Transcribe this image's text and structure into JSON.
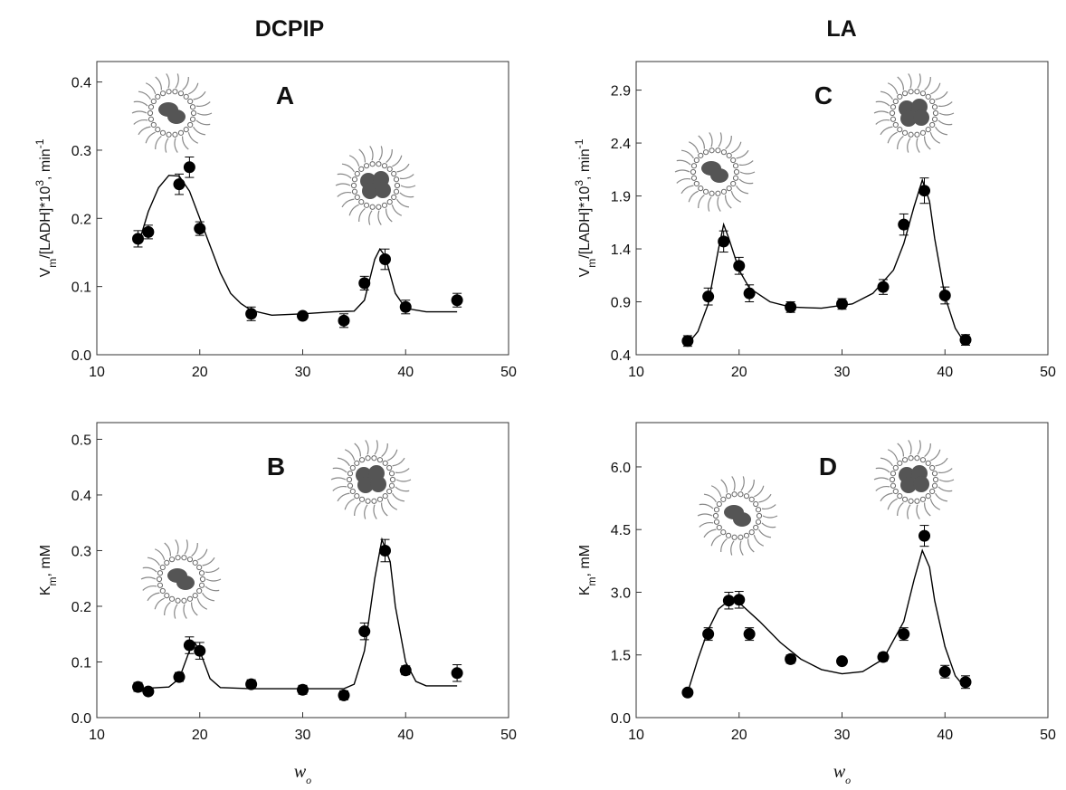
{
  "column_titles": [
    "DCPIP",
    "LA"
  ],
  "chart_data": [
    {
      "type": "scatter",
      "panel_label": "A",
      "ylabel": [
        {
          "text": "V"
        },
        {
          "sub": "m"
        },
        {
          "text": "/[LADH]*10"
        },
        {
          "sup": "3"
        },
        {
          "text": ", min"
        },
        {
          "sup": "-1"
        }
      ],
      "xlim": [
        10,
        50
      ],
      "xticks": [
        10,
        20,
        30,
        40,
        50
      ],
      "ylim": [
        0,
        0.43
      ],
      "yticks": [
        {
          "value": 0,
          "label": "0.0"
        },
        0.1,
        0.2,
        0.3,
        0.4
      ],
      "points": {
        "x": [
          14,
          15,
          18,
          19,
          20,
          25,
          30,
          34,
          36,
          38,
          40,
          45
        ],
        "y": [
          0.17,
          0.18,
          0.25,
          0.275,
          0.185,
          0.06,
          0.057,
          0.05,
          0.105,
          0.14,
          0.07,
          0.08
        ],
        "err": [
          0.012,
          0.01,
          0.015,
          0.015,
          0.01,
          0.01,
          0.005,
          0.01,
          0.01,
          0.015,
          0.01,
          0.01
        ]
      },
      "fit": {
        "x": [
          14,
          15,
          16,
          17,
          18,
          19,
          20,
          21,
          22,
          23,
          24,
          25,
          27,
          30,
          33,
          35,
          36,
          37,
          37.5,
          38,
          39,
          40,
          42,
          45
        ],
        "y": [
          0.16,
          0.21,
          0.245,
          0.263,
          0.262,
          0.24,
          0.2,
          0.16,
          0.12,
          0.09,
          0.075,
          0.065,
          0.058,
          0.06,
          0.063,
          0.064,
          0.08,
          0.14,
          0.155,
          0.145,
          0.09,
          0.068,
          0.063,
          0.063
        ]
      }
    },
    {
      "type": "scatter",
      "panel_label": "B",
      "ylabel": [
        {
          "text": "K"
        },
        {
          "sub": "m"
        },
        {
          "text": ", mM"
        }
      ],
      "xlabel": [
        {
          "text": "w"
        },
        {
          "sub": "o"
        }
      ],
      "xlim": [
        10,
        50
      ],
      "xticks": [
        10,
        20,
        30,
        40,
        50
      ],
      "ylim": [
        0,
        0.53
      ],
      "yticks": [
        {
          "value": 0,
          "label": "0.0"
        },
        0.1,
        0.2,
        0.3,
        0.4,
        0.5
      ],
      "points": {
        "x": [
          14,
          15,
          18,
          19,
          20,
          25,
          30,
          34,
          36,
          38,
          40,
          45
        ],
        "y": [
          0.055,
          0.047,
          0.073,
          0.13,
          0.12,
          0.06,
          0.05,
          0.04,
          0.155,
          0.3,
          0.085,
          0.08
        ],
        "err": [
          0.008,
          0.006,
          0.008,
          0.015,
          0.015,
          0.008,
          0.008,
          0.008,
          0.015,
          0.02,
          0.008,
          0.015
        ]
      },
      "fit": {
        "x": [
          14,
          17,
          18,
          19,
          19.5,
          20,
          21,
          22,
          25,
          34,
          35,
          36,
          37,
          37.7,
          38.5,
          39,
          40,
          41,
          42,
          45
        ],
        "y": [
          0.052,
          0.055,
          0.07,
          0.12,
          0.135,
          0.12,
          0.07,
          0.054,
          0.052,
          0.052,
          0.06,
          0.12,
          0.25,
          0.32,
          0.28,
          0.2,
          0.1,
          0.065,
          0.057,
          0.057
        ]
      }
    },
    {
      "type": "scatter",
      "panel_label": "C",
      "ylabel": [
        {
          "text": "V"
        },
        {
          "sub": "m"
        },
        {
          "text": "/[LADH]*10"
        },
        {
          "sup": "3"
        },
        {
          "text": ", min"
        },
        {
          "sup": "-1"
        }
      ],
      "xlim": [
        10,
        50
      ],
      "xticks": [
        10,
        20,
        30,
        40,
        50
      ],
      "ylim": [
        0.4,
        3.17
      ],
      "yticks": [
        0.4,
        0.9,
        1.4,
        1.9,
        2.4,
        2.9
      ],
      "points": {
        "x": [
          15,
          17,
          18.5,
          20,
          21,
          25,
          30,
          34,
          36,
          38,
          40,
          42
        ],
        "y": [
          0.53,
          0.95,
          1.47,
          1.24,
          0.98,
          0.85,
          0.88,
          1.04,
          1.63,
          1.95,
          0.96,
          0.54
        ],
        "err": [
          0.05,
          0.08,
          0.1,
          0.08,
          0.08,
          0.05,
          0.05,
          0.07,
          0.1,
          0.12,
          0.08,
          0.05
        ]
      },
      "fit": {
        "x": [
          15,
          16,
          17,
          18,
          18.5,
          19,
          20,
          21,
          23,
          25,
          28,
          31,
          33,
          35,
          36,
          37,
          37.8,
          38.5,
          39,
          40,
          41,
          42
        ],
        "y": [
          0.5,
          0.62,
          0.88,
          1.4,
          1.63,
          1.5,
          1.2,
          1.03,
          0.9,
          0.85,
          0.84,
          0.88,
          0.98,
          1.2,
          1.45,
          1.8,
          2.05,
          1.85,
          1.5,
          0.95,
          0.65,
          0.5
        ]
      }
    },
    {
      "type": "scatter",
      "panel_label": "D",
      "ylabel": [
        {
          "text": "K"
        },
        {
          "sub": "m"
        },
        {
          "text": ", mM"
        }
      ],
      "xlabel": [
        {
          "text": "w"
        },
        {
          "sub": "o"
        }
      ],
      "xlim": [
        10,
        50
      ],
      "xticks": [
        10,
        20,
        30,
        40,
        50
      ],
      "ylim": [
        0,
        7.06
      ],
      "yticks": [
        {
          "value": 0,
          "label": "0.0"
        },
        1.5,
        {
          "value": 3,
          "label": "3.0"
        },
        4.5,
        {
          "value": 6,
          "label": "6.0"
        }
      ],
      "points": {
        "x": [
          15,
          17,
          19,
          20,
          21,
          25,
          30,
          34,
          36,
          38,
          40,
          42
        ],
        "y": [
          0.6,
          2.0,
          2.8,
          2.82,
          2.0,
          1.4,
          1.35,
          1.45,
          2.0,
          4.35,
          1.1,
          0.85
        ],
        "err": [
          0.08,
          0.15,
          0.2,
          0.2,
          0.15,
          0.1,
          0.08,
          0.1,
          0.15,
          0.25,
          0.15,
          0.15
        ]
      },
      "fit": {
        "x": [
          15,
          16,
          17,
          18,
          19,
          20,
          22,
          24,
          26,
          28,
          30,
          32,
          34,
          36,
          37,
          37.8,
          38.5,
          39,
          40,
          41,
          42
        ],
        "y": [
          0.6,
          1.4,
          2.1,
          2.6,
          2.8,
          2.75,
          2.3,
          1.8,
          1.4,
          1.15,
          1.05,
          1.1,
          1.4,
          2.3,
          3.3,
          4.0,
          3.6,
          2.8,
          1.7,
          1.0,
          0.7
        ]
      }
    }
  ]
}
